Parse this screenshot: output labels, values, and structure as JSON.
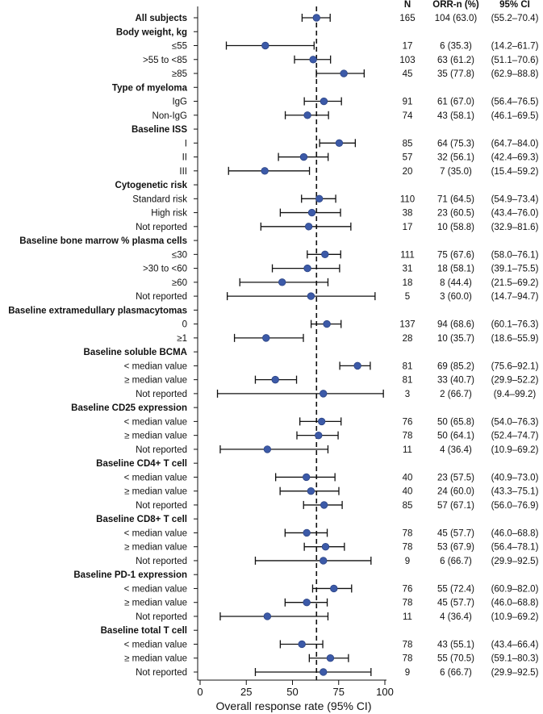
{
  "chart_data": {
    "type": "forest",
    "xlabel": "Overall response rate (95% CI)",
    "xlim": [
      0,
      100
    ],
    "xticks": [
      0,
      25,
      50,
      75,
      100
    ],
    "reference_line": 63.0,
    "column_headers": {
      "n": "N",
      "orr": "ORR-n (%)",
      "ci": "95% CI"
    },
    "colors": {
      "point": "#3c5aa8",
      "point_edge": "#2c4484",
      "line": "#111111"
    },
    "rows": [
      {
        "label": "All subjects",
        "kind": "header",
        "n": "165",
        "orr": "104 (63.0)",
        "ci": "(55.2–70.4)",
        "est": 63.0,
        "lo": 55.2,
        "hi": 70.4
      },
      {
        "label": "Body weight, kg",
        "kind": "header"
      },
      {
        "label": "≤55",
        "kind": "sub",
        "n": "17",
        "orr": "6 (35.3)",
        "ci": "(14.2–61.7)",
        "est": 35.3,
        "lo": 14.2,
        "hi": 61.7
      },
      {
        "label": ">55 to <85",
        "kind": "sub",
        "n": "103",
        "orr": "63 (61.2)",
        "ci": "(51.1–70.6)",
        "est": 61.2,
        "lo": 51.1,
        "hi": 70.6
      },
      {
        "label": "≥85",
        "kind": "sub",
        "n": "45",
        "orr": "35 (77.8)",
        "ci": "(62.9–88.8)",
        "est": 77.8,
        "lo": 62.9,
        "hi": 88.8
      },
      {
        "label": "Type of myeloma",
        "kind": "header"
      },
      {
        "label": "IgG",
        "kind": "sub",
        "n": "91",
        "orr": "61 (67.0)",
        "ci": "(56.4–76.5)",
        "est": 67.0,
        "lo": 56.4,
        "hi": 76.5
      },
      {
        "label": "Non-IgG",
        "kind": "sub",
        "n": "74",
        "orr": "43 (58.1)",
        "ci": "(46.1–69.5)",
        "est": 58.1,
        "lo": 46.1,
        "hi": 69.5
      },
      {
        "label": "Baseline ISS",
        "kind": "header"
      },
      {
        "label": "I",
        "kind": "sub",
        "n": "85",
        "orr": "64 (75.3)",
        "ci": "(64.7–84.0)",
        "est": 75.3,
        "lo": 64.7,
        "hi": 84.0
      },
      {
        "label": "II",
        "kind": "sub",
        "n": "57",
        "orr": "32 (56.1)",
        "ci": "(42.4–69.3)",
        "est": 56.1,
        "lo": 42.4,
        "hi": 69.3
      },
      {
        "label": "III",
        "kind": "sub",
        "n": "20",
        "orr": "7 (35.0)",
        "ci": "(15.4–59.2)",
        "est": 35.0,
        "lo": 15.4,
        "hi": 59.2
      },
      {
        "label": "Cytogenetic risk",
        "kind": "header"
      },
      {
        "label": "Standard risk",
        "kind": "sub",
        "n": "110",
        "orr": "71 (64.5)",
        "ci": "(54.9–73.4)",
        "est": 64.5,
        "lo": 54.9,
        "hi": 73.4
      },
      {
        "label": "High risk",
        "kind": "sub",
        "n": "38",
        "orr": "23 (60.5)",
        "ci": "(43.4–76.0)",
        "est": 60.5,
        "lo": 43.4,
        "hi": 76.0
      },
      {
        "label": "Not reported",
        "kind": "sub",
        "n": "17",
        "orr": "10 (58.8)",
        "ci": "(32.9–81.6)",
        "est": 58.8,
        "lo": 32.9,
        "hi": 81.6
      },
      {
        "label": "Baseline bone marrow % plasma cells",
        "kind": "header"
      },
      {
        "label": "≤30",
        "kind": "sub",
        "n": "111",
        "orr": "75 (67.6)",
        "ci": "(58.0–76.1)",
        "est": 67.6,
        "lo": 58.0,
        "hi": 76.1
      },
      {
        "label": ">30 to <60",
        "kind": "sub",
        "n": "31",
        "orr": "18 (58.1)",
        "ci": "(39.1–75.5)",
        "est": 58.1,
        "lo": 39.1,
        "hi": 75.5
      },
      {
        "label": "≥60",
        "kind": "sub",
        "n": "18",
        "orr": "8 (44.4)",
        "ci": "(21.5–69.2)",
        "est": 44.4,
        "lo": 21.5,
        "hi": 69.2
      },
      {
        "label": "Not reported",
        "kind": "sub",
        "n": "5",
        "orr": "3 (60.0)",
        "ci": "(14.7–94.7)",
        "est": 60.0,
        "lo": 14.7,
        "hi": 94.7
      },
      {
        "label": "Baseline extramedullary plasmacytomas",
        "kind": "header"
      },
      {
        "label": "0",
        "kind": "sub",
        "n": "137",
        "orr": "94 (68.6)",
        "ci": "(60.1–76.3)",
        "est": 68.6,
        "lo": 60.1,
        "hi": 76.3
      },
      {
        "label": "≥1",
        "kind": "sub",
        "n": "28",
        "orr": "10 (35.7)",
        "ci": "(18.6–55.9)",
        "est": 35.7,
        "lo": 18.6,
        "hi": 55.9
      },
      {
        "label": "Baseline soluble BCMA",
        "kind": "header"
      },
      {
        "label": "< median value",
        "kind": "sub",
        "n": "81",
        "orr": "69 (85.2)",
        "ci": "(75.6–92.1)",
        "est": 85.2,
        "lo": 75.6,
        "hi": 92.1
      },
      {
        "label": "≥ median value",
        "kind": "sub",
        "n": "81",
        "orr": "33 (40.7)",
        "ci": "(29.9–52.2)",
        "est": 40.7,
        "lo": 29.9,
        "hi": 52.2
      },
      {
        "label": "Not reported",
        "kind": "sub",
        "n": "3",
        "orr": "2 (66.7)",
        "ci": "(9.4–99.2)",
        "est": 66.7,
        "lo": 9.4,
        "hi": 99.2
      },
      {
        "label": "Baseline CD25 expression",
        "kind": "header"
      },
      {
        "label": "< median value",
        "kind": "sub",
        "n": "76",
        "orr": "50 (65.8)",
        "ci": "(54.0–76.3)",
        "est": 65.8,
        "lo": 54.0,
        "hi": 76.3
      },
      {
        "label": "≥ median value",
        "kind": "sub",
        "n": "78",
        "orr": "50 (64.1)",
        "ci": "(52.4–74.7)",
        "est": 64.1,
        "lo": 52.4,
        "hi": 74.7
      },
      {
        "label": "Not reported",
        "kind": "sub",
        "n": "11",
        "orr": "4 (36.4)",
        "ci": "(10.9–69.2)",
        "est": 36.4,
        "lo": 10.9,
        "hi": 69.2
      },
      {
        "label": "Baseline CD4+ T cell",
        "kind": "header"
      },
      {
        "label": "< median value",
        "kind": "sub",
        "n": "40",
        "orr": "23 (57.5)",
        "ci": "(40.9–73.0)",
        "est": 57.5,
        "lo": 40.9,
        "hi": 73.0
      },
      {
        "label": "≥ median value",
        "kind": "sub",
        "n": "40",
        "orr": "24 (60.0)",
        "ci": "(43.3–75.1)",
        "est": 60.0,
        "lo": 43.3,
        "hi": 75.1
      },
      {
        "label": "Not reported",
        "kind": "sub",
        "n": "85",
        "orr": "57 (67.1)",
        "ci": "(56.0–76.9)",
        "est": 67.1,
        "lo": 56.0,
        "hi": 76.9
      },
      {
        "label": "Baseline CD8+ T cell",
        "kind": "header"
      },
      {
        "label": "< median value",
        "kind": "sub",
        "n": "78",
        "orr": "45 (57.7)",
        "ci": "(46.0–68.8)",
        "est": 57.7,
        "lo": 46.0,
        "hi": 68.8
      },
      {
        "label": "≥ median value",
        "kind": "sub",
        "n": "78",
        "orr": "53 (67.9)",
        "ci": "(56.4–78.1)",
        "est": 67.9,
        "lo": 56.4,
        "hi": 78.1
      },
      {
        "label": "Not reported",
        "kind": "sub",
        "n": "9",
        "orr": "6 (66.7)",
        "ci": "(29.9–92.5)",
        "est": 66.7,
        "lo": 29.9,
        "hi": 92.5
      },
      {
        "label": "Baseline PD-1 expression",
        "kind": "header"
      },
      {
        "label": "< median value",
        "kind": "sub",
        "n": "76",
        "orr": "55 (72.4)",
        "ci": "(60.9–82.0)",
        "est": 72.4,
        "lo": 60.9,
        "hi": 82.0
      },
      {
        "label": "≥ median value",
        "kind": "sub",
        "n": "78",
        "orr": "45 (57.7)",
        "ci": "(46.0–68.8)",
        "est": 57.7,
        "lo": 46.0,
        "hi": 68.8
      },
      {
        "label": "Not reported",
        "kind": "sub",
        "n": "11",
        "orr": "4 (36.4)",
        "ci": "(10.9–69.2)",
        "est": 36.4,
        "lo": 10.9,
        "hi": 69.2
      },
      {
        "label": "Baseline total T cell",
        "kind": "header"
      },
      {
        "label": "< median value",
        "kind": "sub",
        "n": "78",
        "orr": "43 (55.1)",
        "ci": "(43.4–66.4)",
        "est": 55.1,
        "lo": 43.4,
        "hi": 66.4
      },
      {
        "label": "≥ median value",
        "kind": "sub",
        "n": "78",
        "orr": "55 (70.5)",
        "ci": "(59.1–80.3)",
        "est": 70.5,
        "lo": 59.1,
        "hi": 80.3
      },
      {
        "label": "Not reported",
        "kind": "sub",
        "n": "9",
        "orr": "6 (66.7)",
        "ci": "(29.9–92.5)",
        "est": 66.7,
        "lo": 29.9,
        "hi": 92.5
      }
    ]
  }
}
